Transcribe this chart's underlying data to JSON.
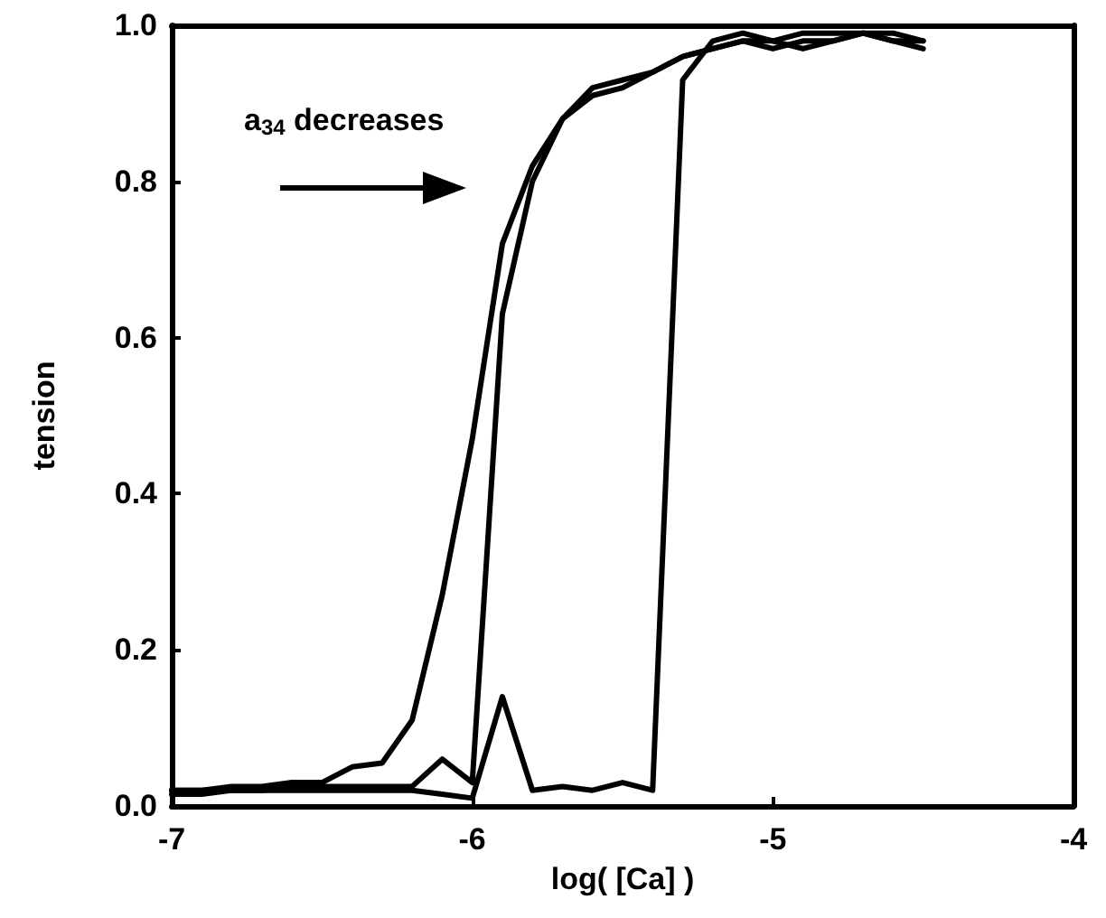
{
  "chart_data": {
    "type": "line",
    "xlabel": "log( [Ca] )",
    "ylabel": "tension",
    "annotations": [
      "a$_{34}$ decreases"
    ],
    "series": [
      {
        "color": "#000000",
        "x": [
          -7,
          -6.9,
          -6.8,
          -6.7,
          -6.6,
          -6.5,
          -6.4,
          -6.3,
          -6.2,
          -6.1,
          -6.0,
          -5.9,
          -5.8,
          -5.7,
          -5.6,
          -5.5,
          -5.4,
          -5.3,
          -5.2,
          -5.1,
          -5.0,
          -4.9,
          -4.8,
          -4.7,
          -4.6,
          -4.5
        ],
        "values": [
          0.02,
          0.02,
          0.025,
          0.025,
          0.03,
          0.03,
          0.05,
          0.055,
          0.11,
          0.27,
          0.47,
          0.72,
          0.82,
          0.88,
          0.91,
          0.92,
          0.94,
          0.96,
          0.97,
          0.98,
          0.97,
          0.98,
          0.98,
          0.99,
          0.98,
          0.97
        ]
      },
      {
        "color": "#000000",
        "x": [
          -7,
          -6.9,
          -6.8,
          -6.7,
          -6.6,
          -6.5,
          -6.4,
          -6.3,
          -6.2,
          -6.1,
          -6.0,
          -5.9,
          -5.8,
          -5.7,
          -5.6,
          -5.5,
          -5.4,
          -5.3,
          -5.2,
          -5.1,
          -5.0,
          -4.9,
          -4.8,
          -4.7,
          -4.6,
          -4.5
        ],
        "values": [
          0.015,
          0.015,
          0.02,
          0.02,
          0.025,
          0.025,
          0.025,
          0.025,
          0.025,
          0.06,
          0.03,
          0.63,
          0.8,
          0.88,
          0.92,
          0.93,
          0.94,
          0.96,
          0.97,
          0.98,
          0.98,
          0.99,
          0.99,
          0.99,
          0.98,
          0.98
        ]
      },
      {
        "color": "#000000",
        "x": [
          -7,
          -6.9,
          -6.8,
          -6.7,
          -6.6,
          -6.5,
          -6.4,
          -6.3,
          -6.2,
          -6.1,
          -6.0,
          -5.9,
          -5.8,
          -5.7,
          -5.6,
          -5.5,
          -5.4,
          -5.3,
          -5.2,
          -5.1,
          -5.0,
          -4.9,
          -4.8,
          -4.7,
          -4.6,
          -4.5
        ],
        "values": [
          0.02,
          0.02,
          0.02,
          0.02,
          0.02,
          0.02,
          0.02,
          0.02,
          0.02,
          0.015,
          0.01,
          0.14,
          0.02,
          0.025,
          0.02,
          0.03,
          0.02,
          0.93,
          0.98,
          0.99,
          0.98,
          0.97,
          0.98,
          0.99,
          0.99,
          0.98
        ]
      }
    ],
    "xlim": [
      -7,
      -4
    ],
    "xticks": [
      -7,
      -6,
      -5,
      -4
    ],
    "ylim": [
      0,
      1
    ],
    "yticks": [
      {
        "value": 0,
        "label": "0.0"
      },
      0.2,
      0.4,
      0.6,
      0.8,
      {
        "value": 1,
        "label": "1.0"
      }
    ],
    "grid": false,
    "marker": "none",
    "line_style": "solid"
  }
}
